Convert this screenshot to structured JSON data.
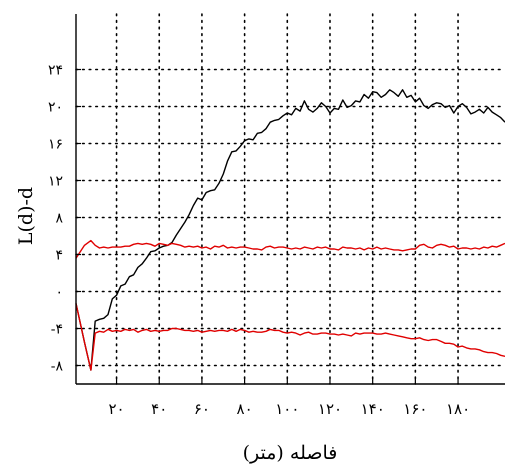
{
  "chart_data": {
    "type": "line",
    "title": "",
    "xlabel": "فاصله (متر)",
    "ylabel": "L(d)-d",
    "xlim": [
      1,
      202
    ],
    "ylim": [
      -10,
      30
    ],
    "grid": true,
    "x_ticks": [
      20,
      40,
      60,
      80,
      100,
      120,
      140,
      160,
      180
    ],
    "x_tick_labels": [
      "۲۰",
      "۴۰",
      "۶۰",
      "۸۰",
      "۱۰۰",
      "۱۲۰",
      "۱۴۰",
      "۱۶۰",
      "۱۸۰"
    ],
    "y_ticks": [
      -8,
      -4,
      0,
      4,
      8,
      12,
      16,
      20,
      24
    ],
    "y_tick_labels": [
      "-۸",
      "-۴",
      "۰",
      "۴",
      "۸",
      "۱۲",
      "۱۶",
      "۲۰",
      "۲۴"
    ],
    "x": [
      1,
      5,
      8,
      10,
      12,
      14,
      16,
      18,
      20,
      22,
      24,
      26,
      28,
      30,
      32,
      34,
      36,
      38,
      40,
      42,
      44,
      46,
      48,
      50,
      52,
      54,
      56,
      58,
      60,
      62,
      64,
      66,
      68,
      70,
      72,
      74,
      76,
      78,
      80,
      82,
      84,
      86,
      88,
      90,
      92,
      94,
      96,
      98,
      100,
      102,
      104,
      106,
      108,
      110,
      112,
      114,
      116,
      118,
      120,
      122,
      124,
      126,
      128,
      130,
      132,
      134,
      136,
      138,
      140,
      142,
      144,
      146,
      148,
      150,
      152,
      154,
      156,
      158,
      160,
      162,
      164,
      166,
      168,
      170,
      172,
      174,
      176,
      178,
      180,
      182,
      184,
      186,
      188,
      190,
      192,
      194,
      196,
      198,
      200,
      202
    ],
    "series": [
      {
        "color": "#000000",
        "values": [
          -1.3,
          -5.5,
          -8.5,
          -3.2,
          -3.0,
          -2.9,
          -2.5,
          -0.8,
          -0.4,
          0.6,
          0.8,
          1.6,
          1.8,
          2.6,
          3.0,
          3.6,
          4.3,
          4.4,
          4.7,
          4.9,
          5.0,
          5.3,
          6.1,
          6.8,
          7.5,
          8.3,
          9.3,
          10.1,
          9.9,
          10.7,
          10.9,
          11.0,
          11.7,
          12.7,
          14.1,
          15.1,
          15.2,
          15.7,
          16.3,
          16.5,
          16.4,
          17.1,
          17.2,
          17.6,
          18.3,
          18.5,
          18.6,
          19.0,
          19.3,
          19.1,
          19.8,
          19.5,
          20.6,
          19.7,
          19.4,
          19.8,
          20.4,
          20.0,
          19.3,
          19.8,
          19.7,
          20.7,
          19.9,
          20.1,
          20.6,
          20.5,
          21.3,
          20.9,
          21.6,
          21.5,
          21.0,
          21.3,
          21.8,
          21.5,
          21.1,
          21.8,
          21.0,
          21.2,
          20.5,
          20.9,
          20.1,
          19.8,
          20.2,
          20.4,
          20.3,
          19.9,
          20.1,
          19.3,
          20.0,
          20.3,
          19.9,
          19.2,
          19.4,
          19.7,
          19.3,
          19.9,
          19.4,
          19.1,
          18.8,
          18.3
        ]
      },
      {
        "color": "#e00000",
        "values": [
          3.6,
          5.0,
          5.5,
          5.0,
          4.7,
          4.8,
          4.7,
          4.8,
          4.8,
          4.8,
          4.9,
          4.9,
          5.1,
          5.2,
          5.1,
          5.2,
          5.1,
          4.9,
          5.2,
          5.1,
          5.0,
          5.2,
          5.1,
          5.0,
          4.8,
          4.9,
          4.8,
          4.9,
          4.7,
          4.8,
          4.6,
          4.9,
          4.8,
          5.0,
          4.7,
          4.8,
          4.7,
          4.8,
          4.8,
          4.7,
          4.6,
          4.6,
          4.5,
          4.8,
          4.9,
          4.7,
          4.8,
          4.8,
          4.7,
          4.6,
          4.7,
          4.6,
          4.8,
          4.7,
          4.6,
          4.8,
          4.7,
          4.8,
          4.6,
          4.6,
          4.5,
          4.8,
          4.7,
          4.7,
          4.6,
          4.7,
          4.5,
          4.7,
          4.6,
          4.8,
          4.6,
          4.7,
          4.6,
          4.5,
          4.5,
          4.4,
          4.5,
          4.6,
          4.6,
          5.0,
          5.1,
          4.8,
          4.7,
          5.0,
          5.1,
          5.0,
          4.8,
          4.9,
          4.6,
          4.7,
          4.7,
          4.6,
          4.7,
          4.6,
          4.8,
          4.7,
          4.9,
          4.8,
          5.0,
          5.2
        ]
      },
      {
        "color": "#e00000",
        "values": [
          -1.3,
          -5.5,
          -8.5,
          -4.5,
          -4.3,
          -4.4,
          -4.1,
          -4.3,
          -4.2,
          -4.3,
          -4.1,
          -4.2,
          -4.1,
          -4.4,
          -4.2,
          -4.1,
          -4.3,
          -4.2,
          -4.3,
          -4.2,
          -4.2,
          -4.0,
          -4.0,
          -4.1,
          -4.2,
          -4.2,
          -4.3,
          -4.2,
          -4.4,
          -4.3,
          -4.2,
          -4.3,
          -4.2,
          -4.2,
          -4.3,
          -4.1,
          -4.3,
          -4.1,
          -4.2,
          -4.4,
          -4.3,
          -4.4,
          -4.4,
          -4.3,
          -4.1,
          -4.2,
          -4.2,
          -4.4,
          -4.5,
          -4.4,
          -4.5,
          -4.7,
          -4.5,
          -4.4,
          -4.6,
          -4.6,
          -4.5,
          -4.5,
          -4.6,
          -4.6,
          -4.7,
          -4.6,
          -4.7,
          -4.8,
          -4.5,
          -4.6,
          -4.5,
          -4.5,
          -4.5,
          -4.6,
          -4.6,
          -4.5,
          -4.6,
          -4.7,
          -4.8,
          -4.9,
          -5.0,
          -5.1,
          -5.1,
          -5.0,
          -5.2,
          -5.3,
          -5.2,
          -5.2,
          -5.4,
          -5.6,
          -5.6,
          -5.7,
          -6.0,
          -5.9,
          -6.1,
          -6.2,
          -6.2,
          -6.3,
          -6.5,
          -6.6,
          -6.6,
          -6.7,
          -6.9,
          -7.0
        ]
      }
    ]
  }
}
